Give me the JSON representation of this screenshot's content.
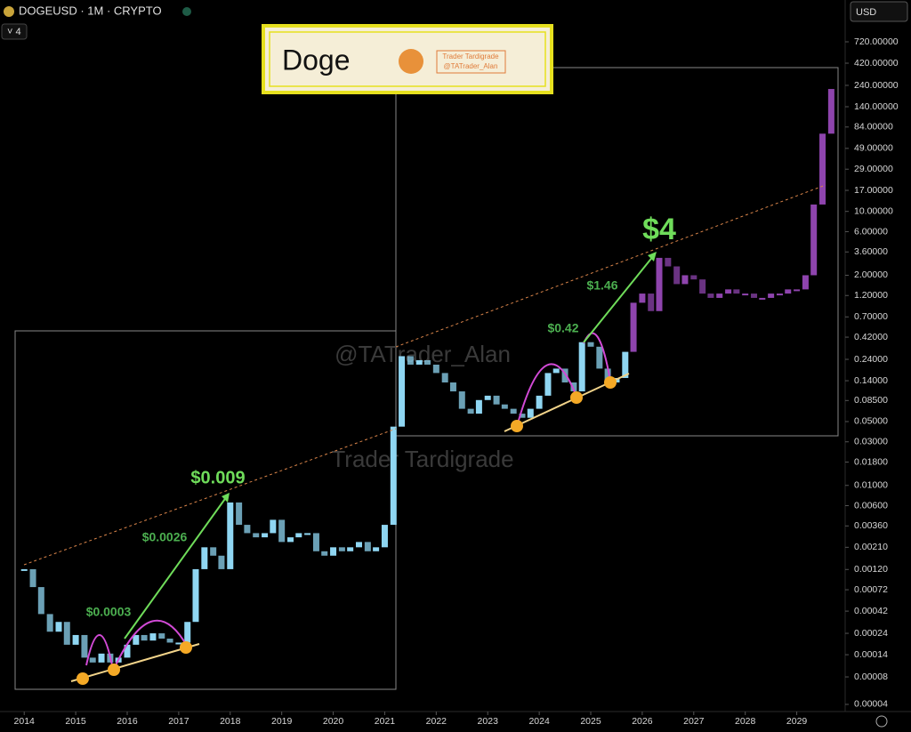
{
  "header": {
    "symbol": "DOGEUSD · 1M · CRYPTO",
    "indicator_count": "4",
    "currency": "USD"
  },
  "logo": {
    "title": "Doge",
    "name": "Trader Tardigrade",
    "handle": "@TATrader_Alan"
  },
  "watermarks": [
    "@TATrader_Alan",
    "Trader Tardigrade"
  ],
  "chart_data": {
    "type": "candlestick",
    "log_scale": true,
    "annotations": [
      "$0.009",
      "$0.0026",
      "$0.0003",
      "$0.42",
      "$1.46",
      "$4"
    ],
    "series": [
      {
        "color": "#8fd6f2",
        "x": [
          2014.0,
          2014.17,
          2014.33,
          2014.5,
          2014.67,
          2014.83,
          2015.0,
          2015.17,
          2015.33,
          2015.5,
          2015.67,
          2015.83,
          2016.0,
          2016.17,
          2016.33,
          2016.5,
          2016.67,
          2016.83,
          2017.0,
          2017.17,
          2017.33,
          2017.5,
          2017.67,
          2017.83,
          2018.0,
          2018.17,
          2018.33,
          2018.5,
          2018.67,
          2018.83,
          2019.0,
          2019.17,
          2019.33,
          2019.5,
          2019.67,
          2019.83,
          2020.0,
          2020.17,
          2020.33,
          2020.5,
          2020.67,
          2020.83,
          2021.0,
          2021.17,
          2021.33,
          2021.5,
          2021.67,
          2021.83,
          2022.0,
          2022.17,
          2022.33,
          2022.5,
          2022.67,
          2022.83,
          2023.0,
          2023.17,
          2023.33,
          2023.5,
          2023.67,
          2023.83,
          2024.0,
          2024.17,
          2024.33,
          2024.5,
          2024.67,
          2024.83,
          2025.0,
          2025.17,
          2025.33,
          2025.5,
          2025.67
        ],
        "values": [
          0.00121,
          0.00077,
          0.00039,
          0.00025,
          0.00032,
          0.00018,
          0.00023,
          0.00013,
          0.000115,
          0.000144,
          0.000115,
          0.00013,
          0.00018,
          0.00023,
          0.0002,
          0.00024,
          0.00021,
          0.00019,
          0.00019,
          0.00032,
          0.00121,
          0.0021,
          0.0017,
          0.00121,
          0.0065,
          0.0037,
          0.003,
          0.0027,
          0.003,
          0.0042,
          0.0024,
          0.0027,
          0.003,
          0.003,
          0.0019,
          0.0017,
          0.0021,
          0.0019,
          0.0021,
          0.0024,
          0.0019,
          0.0021,
          0.0037,
          0.044,
          0.26,
          0.21,
          0.235,
          0.21,
          0.17,
          0.134,
          0.107,
          0.069,
          0.061,
          0.086,
          0.096,
          0.077,
          0.069,
          0.061,
          0.055,
          0.069,
          0.096,
          0.17,
          0.19,
          0.134,
          0.107,
          0.37,
          0.33,
          0.19,
          0.134,
          0.15,
          0.29
        ]
      },
      {
        "color": "#8e44ad",
        "x": [
          2025.83,
          2026.0,
          2026.17,
          2026.33,
          2026.5,
          2026.67,
          2026.83,
          2027.0,
          2027.17,
          2027.33,
          2027.5,
          2027.67,
          2027.83,
          2028.0,
          2028.17,
          2028.33,
          2028.5,
          2028.67,
          2028.83,
          2029.0,
          2029.17,
          2029.33,
          2029.5,
          2029.67
        ],
        "values": [
          1.0,
          1.26,
          0.81,
          3.1,
          2.5,
          1.6,
          2.0,
          1.8,
          1.26,
          1.13,
          1.26,
          1.4,
          1.26,
          1.26,
          1.13,
          1.13,
          1.26,
          1.26,
          1.4,
          1.4,
          2.0,
          11.9,
          71,
          219
        ]
      }
    ],
    "xlim": [
      2013.53,
      2029.94
    ],
    "xticks": [
      2014,
      2015,
      2016,
      2017,
      2018,
      2019,
      2020,
      2021,
      2022,
      2023,
      2024,
      2025,
      2026,
      2027,
      2028,
      2029
    ],
    "ylim": [
      3.34e-05,
      2065
    ],
    "yticks": [
      {
        "value": 720,
        "label": "720.00000"
      },
      {
        "value": 420,
        "label": "420.00000"
      },
      {
        "value": 240,
        "label": "240.00000"
      },
      {
        "value": 140,
        "label": "140.00000"
      },
      {
        "value": 84,
        "label": "84.00000"
      },
      {
        "value": 49,
        "label": "49.00000"
      },
      {
        "value": 29,
        "label": "29.00000"
      },
      {
        "value": 17,
        "label": "17.00000"
      },
      {
        "value": 10,
        "label": "10.00000"
      },
      {
        "value": 6,
        "label": "6.00000"
      },
      {
        "value": 3.6,
        "label": "3.60000"
      },
      {
        "value": 2,
        "label": "2.00000"
      },
      {
        "value": 1.2,
        "label": "1.20000"
      },
      {
        "value": 0.7,
        "label": "0.70000"
      },
      {
        "value": 0.42,
        "label": "0.42000"
      },
      {
        "value": 0.24,
        "label": "0.24000"
      },
      {
        "value": 0.14,
        "label": "0.14000"
      },
      {
        "value": 0.085,
        "label": "0.08500"
      },
      {
        "value": 0.05,
        "label": "0.05000"
      },
      {
        "value": 0.03,
        "label": "0.03000"
      },
      {
        "value": 0.018,
        "label": "0.01800"
      },
      {
        "value": 0.01,
        "label": "0.01000"
      },
      {
        "value": 0.006,
        "label": "0.00600"
      },
      {
        "value": 0.0036,
        "label": "0.00360"
      },
      {
        "value": 0.0021,
        "label": "0.00210"
      },
      {
        "value": 0.0012,
        "label": "0.00120"
      },
      {
        "value": 0.00072,
        "label": "0.00072"
      },
      {
        "value": 0.00042,
        "label": "0.00042"
      },
      {
        "value": 0.00024,
        "label": "0.00024"
      },
      {
        "value": 0.00014,
        "label": "0.00014"
      },
      {
        "value": 8e-05,
        "label": "0.00008"
      },
      {
        "value": 4e-05,
        "label": "0.00004"
      }
    ]
  }
}
